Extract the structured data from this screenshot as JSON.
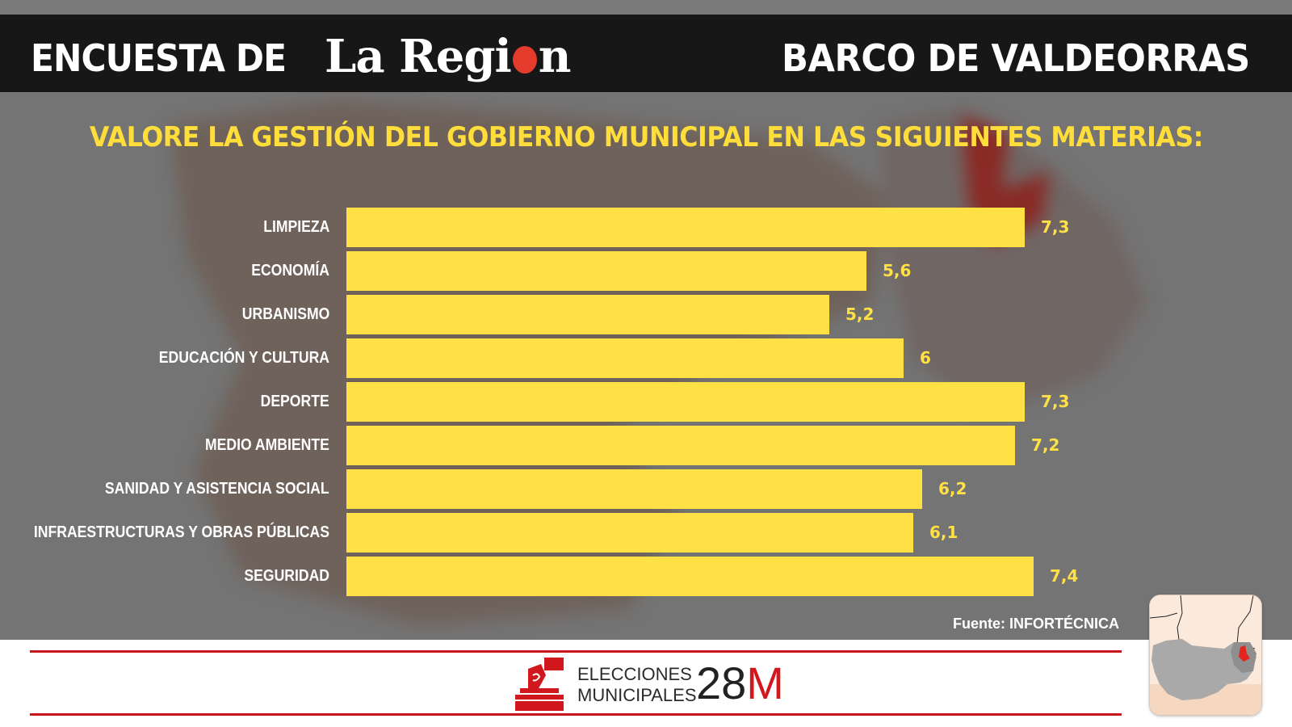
{
  "header": {
    "prefix": "ENCUESTA DE",
    "brand_part1": "La Regi",
    "brand_part2": "n",
    "municipality": "BARCO DE VALDEORRAS"
  },
  "colors": {
    "header_bg": "#171717",
    "bar": "#ffe045",
    "title": "#ffdd3a",
    "accent_red": "#d0181e",
    "background": "#747474"
  },
  "chart_data": {
    "type": "bar",
    "orientation": "horizontal",
    "title": "VALORE LA GESTIÓN DEL GOBIERNO MUNICIPAL EN LAS SIGUIENTES MATERIAS:",
    "xlabel": "",
    "ylabel": "",
    "grid": false,
    "categories": [
      "LIMPIEZA",
      "ECONOMÍA",
      "URBANISMO",
      "EDUCACIÓN Y CULTURA",
      "DEPORTE",
      "MEDIO AMBIENTE",
      "SANIDAD Y ASISTENCIA SOCIAL",
      "INFRAESTRUCTURAS Y OBRAS PÚBLICAS",
      "SEGURIDAD"
    ],
    "values": [
      7.3,
      5.6,
      5.2,
      6,
      7.3,
      7.2,
      6.2,
      6.1,
      7.4
    ],
    "value_labels": [
      "7,3",
      "5,6",
      "5,2",
      "6",
      "7,3",
      "7,2",
      "6,2",
      "6,1",
      "7,4"
    ],
    "xlim": [
      0,
      10
    ],
    "source": "Fuente: INFORTÉCNICA"
  },
  "footer": {
    "line1": "ELECCIONES",
    "line2": "MUNICIPALES",
    "date_num": "28",
    "date_letter": "M"
  },
  "icons": {
    "ballot": "ballot-box-icon",
    "minimap": "location-map-icon"
  }
}
